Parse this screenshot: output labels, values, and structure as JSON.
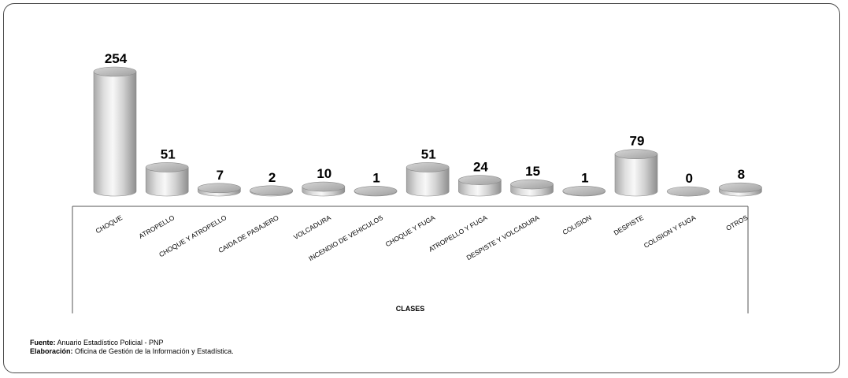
{
  "chart_data": {
    "type": "bar",
    "style": "3d-cylinder",
    "categories": [
      "CHOQUE",
      "ATROPELLO",
      "CHOQUE Y ATROPELLO",
      "CAIDA DE PASAJERO",
      "VOLCADURA",
      "INCENDIO DE VEHICULOS",
      "CHOQUE Y FUGA",
      "ATROPELLO Y FUGA",
      "DESPISTE Y VOLCADURA",
      "COLISION",
      "DESPISTE",
      "COLISION Y FUGA",
      "OTROS"
    ],
    "values": [
      254,
      51,
      7,
      2,
      10,
      1,
      51,
      24,
      15,
      1,
      79,
      0,
      8
    ],
    "xlabel": "CLASES",
    "ylabel": "",
    "ylim": [
      0,
      254
    ],
    "grid": false,
    "legend": false
  },
  "footer": {
    "source_label": "Fuente:",
    "source_text": " Anuario Estadístico Policial - PNP",
    "elab_label": "Elaboración:",
    "elab_text": " Oficina de Gestión de la Información y Estadística."
  },
  "colors": {
    "bar_light": "#f2f2f2",
    "bar_mid": "#c8c8c8",
    "bar_dark": "#8f8f8f",
    "border": "#4a4a4a"
  }
}
